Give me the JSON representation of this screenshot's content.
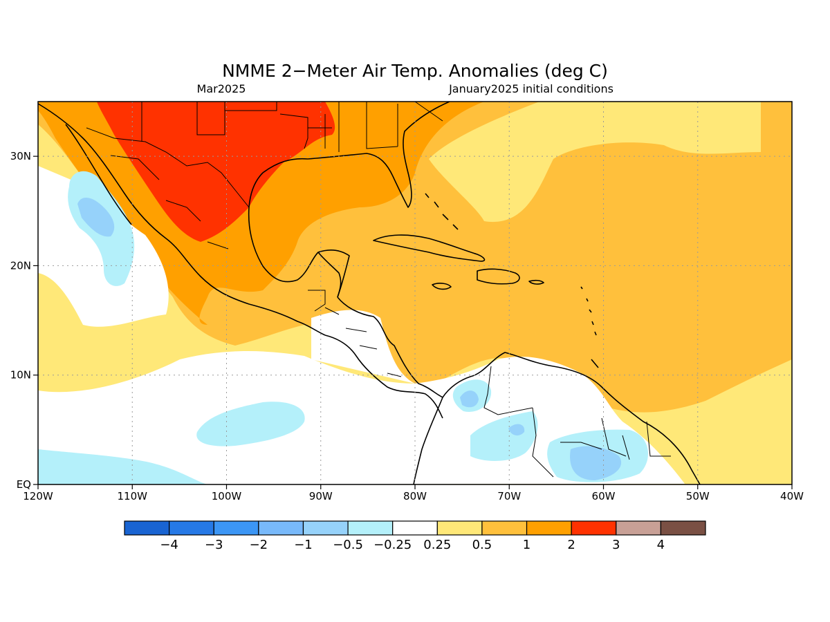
{
  "title": "NMME 2−Meter Air Temp. Anomalies (deg C)",
  "valid_month": "Mar2025",
  "init_label": "January2025 initial conditions",
  "map": {
    "lon_range": [
      -120,
      -40
    ],
    "lat_range": [
      0,
      35
    ],
    "x_ticks": [
      {
        "lon": -120,
        "label": "120W"
      },
      {
        "lon": -110,
        "label": "110W"
      },
      {
        "lon": -100,
        "label": "100W"
      },
      {
        "lon": -90,
        "label": "90W"
      },
      {
        "lon": -80,
        "label": "80W"
      },
      {
        "lon": -70,
        "label": "70W"
      },
      {
        "lon": -60,
        "label": "60W"
      },
      {
        "lon": -50,
        "label": "50W"
      },
      {
        "lon": -40,
        "label": "40W"
      }
    ],
    "y_ticks": [
      {
        "lat": 0,
        "label": "EQ"
      },
      {
        "lat": 10,
        "label": "10N"
      },
      {
        "lat": 20,
        "label": "20N"
      },
      {
        "lat": 30,
        "label": "30N"
      }
    ],
    "grid": true
  },
  "colorbar": {
    "colors": [
      "#1964d2",
      "#2679e6",
      "#3c96f5",
      "#78b9fa",
      "#96d2fa",
      "#b4f0fa",
      "#ffffff",
      "#ffe878",
      "#ffc03c",
      "#ffa000",
      "#ff3200",
      "#c8a096",
      "#7a5044"
    ],
    "labels": [
      "−4",
      "−3",
      "−2",
      "−1",
      "−0.5",
      "−0.25",
      "0.25",
      "0.5",
      "1",
      "2",
      "3",
      "4"
    ]
  }
}
